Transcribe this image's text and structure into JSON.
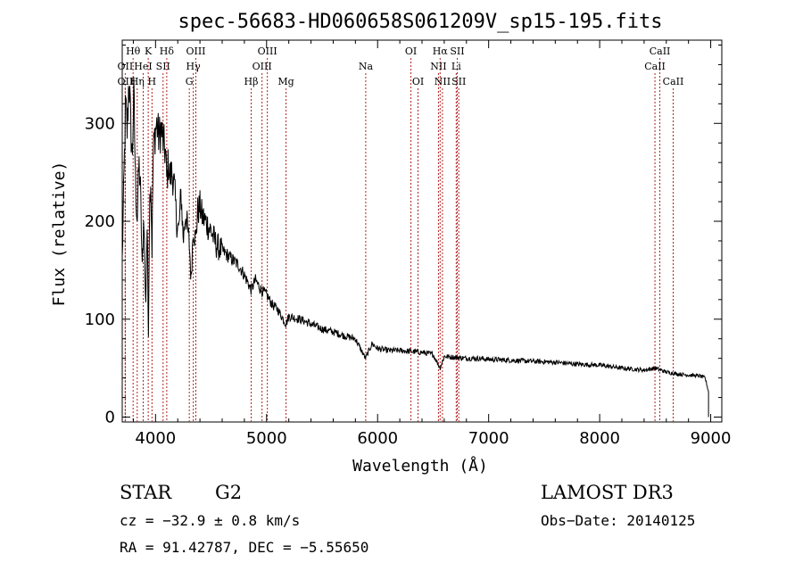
{
  "chart_data": {
    "type": "line",
    "title": "spec-56683-HD060658S061209V_sp15-195.fits",
    "xlabel": "Wavelength (Å)",
    "ylabel": "Flux (relative)",
    "xlim": [
      3700,
      9100
    ],
    "ylim": [
      -5,
      385
    ],
    "xticks": [
      4000,
      5000,
      6000,
      7000,
      8000,
      9000
    ],
    "yticks": [
      0,
      100,
      200,
      300
    ],
    "series": [
      {
        "name": "flux",
        "x": [
          3700,
          3715,
          3730,
          3745,
          3760,
          3775,
          3790,
          3805,
          3820,
          3835,
          3850,
          3865,
          3880,
          3895,
          3910,
          3925,
          3935,
          3945,
          3955,
          3968,
          3980,
          3995,
          4010,
          4030,
          4050,
          4070,
          4090,
          4101,
          4115,
          4130,
          4150,
          4170,
          4190,
          4210,
          4230,
          4250,
          4270,
          4290,
          4305,
          4320,
          4340,
          4360,
          4380,
          4400,
          4420,
          4450,
          4500,
          4550,
          4600,
          4650,
          4700,
          4750,
          4800,
          4861,
          4900,
          4950,
          5000,
          5050,
          5100,
          5150,
          5175,
          5200,
          5300,
          5400,
          5500,
          5600,
          5700,
          5800,
          5890,
          5950,
          6000,
          6100,
          6200,
          6300,
          6400,
          6500,
          6563,
          6600,
          6700,
          6800,
          6900,
          7000,
          7200,
          7400,
          7600,
          7800,
          8000,
          8200,
          8400,
          8500,
          8600,
          8700,
          8800,
          8900,
          8950,
          8980
        ],
        "y": [
          160,
          240,
          320,
          290,
          350,
          300,
          265,
          330,
          240,
          200,
          260,
          230,
          150,
          210,
          110,
          200,
          75,
          210,
          250,
          170,
          270,
          290,
          300,
          285,
          295,
          280,
          270,
          240,
          260,
          245,
          250,
          235,
          200,
          190,
          230,
          180,
          210,
          190,
          175,
          140,
          195,
          180,
          210,
          215,
          205,
          200,
          190,
          175,
          170,
          165,
          160,
          155,
          145,
          130,
          140,
          130,
          125,
          115,
          110,
          100,
          95,
          103,
          100,
          95,
          90,
          87,
          83,
          80,
          60,
          75,
          70,
          68,
          68,
          67,
          66,
          64,
          50,
          62,
          61,
          60,
          60,
          59,
          58,
          57,
          56,
          54,
          53,
          50,
          48,
          50,
          46,
          44,
          43,
          42,
          40,
          26
        ]
      }
    ],
    "line_markers": [
      {
        "label": "Hθ",
        "x": 3798,
        "row": 1
      },
      {
        "label": "OII",
        "x": 3727,
        "row": 2
      },
      {
        "label": "OII",
        "x": 3727,
        "row": 3
      },
      {
        "label": "K",
        "x": 3934,
        "row": 1
      },
      {
        "label": "HeI",
        "x": 3889,
        "row": 2
      },
      {
        "label": "Hη",
        "x": 3835,
        "row": 3
      },
      {
        "label": "H",
        "x": 3968,
        "row": 3
      },
      {
        "label": "SII",
        "x": 4068,
        "row": 2
      },
      {
        "label": "Hδ",
        "x": 4101,
        "row": 1
      },
      {
        "label": "OIII",
        "x": 4363,
        "row": 1
      },
      {
        "label": "Hγ",
        "x": 4340,
        "row": 2
      },
      {
        "label": "G",
        "x": 4304,
        "row": 3
      },
      {
        "label": "Hβ",
        "x": 4861,
        "row": 3
      },
      {
        "label": "OIII",
        "x": 5007,
        "row": 1
      },
      {
        "label": "OIII",
        "x": 4959,
        "row": 2
      },
      {
        "label": "Mg",
        "x": 5175,
        "row": 3
      },
      {
        "label": "Na",
        "x": 5893,
        "row": 2
      },
      {
        "label": "OI",
        "x": 6300,
        "row": 1
      },
      {
        "label": "OI",
        "x": 6364,
        "row": 3
      },
      {
        "label": "Hα",
        "x": 6563,
        "row": 1
      },
      {
        "label": "NII",
        "x": 6548,
        "row": 2
      },
      {
        "label": "NII",
        "x": 6584,
        "row": 3
      },
      {
        "label": "SII",
        "x": 6717,
        "row": 1
      },
      {
        "label": "Li",
        "x": 6708,
        "row": 2
      },
      {
        "label": "SII",
        "x": 6731,
        "row": 3
      },
      {
        "label": "CaII",
        "x": 8542,
        "row": 1
      },
      {
        "label": "CaII",
        "x": 8498,
        "row": 2
      },
      {
        "label": "CaII",
        "x": 8662,
        "row": 3
      }
    ]
  },
  "info": {
    "class": "STAR",
    "subclass": "G2",
    "survey": "LAMOST DR3",
    "cz": "cz = −32.9 ± 0.8 km/s",
    "obs_date": "Obs−Date: 20140125",
    "coords": "RA =  91.42787, DEC =  −5.55650"
  },
  "colors": {
    "line_marker": "#b22222",
    "spectrum": "#000000"
  }
}
